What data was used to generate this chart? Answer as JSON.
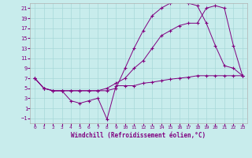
{
  "xlabel": "Windchill (Refroidissement éolien,°C)",
  "bg_color": "#c8ecec",
  "line_color": "#800080",
  "xlim": [
    -0.5,
    23.5
  ],
  "ylim": [
    -2,
    22
  ],
  "yticks": [
    -1,
    1,
    3,
    5,
    7,
    9,
    11,
    13,
    15,
    17,
    19,
    21
  ],
  "xticks": [
    0,
    1,
    2,
    3,
    4,
    5,
    6,
    7,
    8,
    9,
    10,
    11,
    12,
    13,
    14,
    15,
    16,
    17,
    18,
    19,
    20,
    21,
    22,
    23
  ],
  "line1_x": [
    0,
    1,
    2,
    3,
    4,
    5,
    6,
    7,
    8,
    9,
    10,
    11,
    12,
    13,
    14,
    15,
    16,
    17,
    18,
    19,
    20,
    21,
    22,
    23
  ],
  "line1_y": [
    7,
    5,
    4.5,
    4.5,
    2.5,
    2,
    2.5,
    3,
    -1.2,
    5.5,
    5.5,
    5.5,
    6,
    6.2,
    6.5,
    6.8,
    7,
    7.2,
    7.5,
    7.5,
    7.5,
    7.5,
    7.5,
    7.5
  ],
  "line2_x": [
    0,
    1,
    2,
    3,
    4,
    5,
    6,
    7,
    8,
    9,
    10,
    11,
    12,
    13,
    14,
    15,
    16,
    17,
    18,
    19,
    20,
    21,
    22,
    23
  ],
  "line2_y": [
    7,
    5,
    4.5,
    4.5,
    4.5,
    4.5,
    4.5,
    4.5,
    4.5,
    5,
    9,
    13,
    16.5,
    19.5,
    21,
    22,
    22.5,
    22,
    21.5,
    18,
    13.5,
    9.5,
    9,
    7.5
  ],
  "line3_x": [
    0,
    1,
    2,
    3,
    4,
    5,
    6,
    7,
    8,
    9,
    10,
    11,
    12,
    13,
    14,
    15,
    16,
    17,
    18,
    19,
    20,
    21,
    22,
    23
  ],
  "line3_y": [
    7,
    5,
    4.5,
    4.5,
    4.5,
    4.5,
    4.5,
    4.5,
    5,
    6,
    7,
    9,
    10.5,
    13,
    15.5,
    16.5,
    17.5,
    18,
    18,
    21,
    21.5,
    21,
    13.5,
    7.5
  ]
}
